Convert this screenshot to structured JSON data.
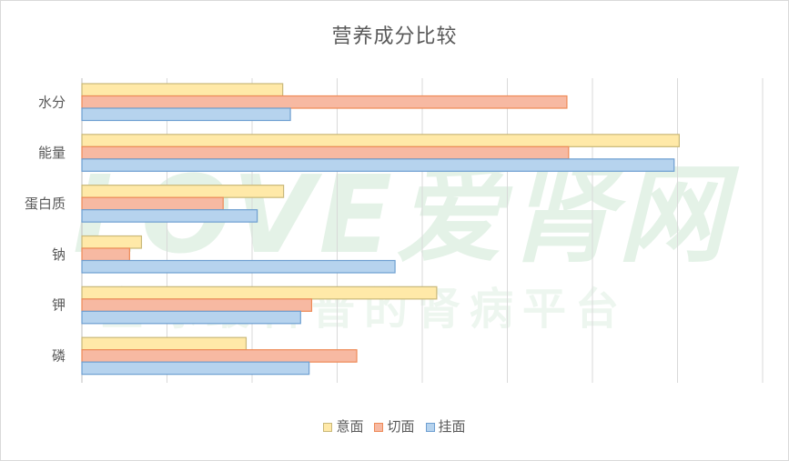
{
  "chart_data": {
    "type": "bar",
    "orientation": "horizontal",
    "title": "营养成分比较",
    "categories": [
      "水分",
      "能量",
      "蛋白质",
      "钠",
      "钾",
      "磷"
    ],
    "series": [
      {
        "name": "意面",
        "values": [
          23.6,
          70.2,
          23.7,
          7.0,
          41.7,
          19.3
        ]
      },
      {
        "name": "切面",
        "values": [
          57.0,
          57.2,
          16.6,
          5.6,
          27.0,
          32.3
        ]
      },
      {
        "name": "挂面",
        "values": [
          24.5,
          69.6,
          20.6,
          36.8,
          25.7,
          26.7
        ]
      }
    ],
    "xlim": [
      0,
      80
    ],
    "grid": true,
    "legend_position": "bottom",
    "colors": {
      "意面": {
        "fill": "#ffe9a8",
        "stroke": "#c9b879"
      },
      "切面": {
        "fill": "#f7b9a2",
        "stroke": "#ee8a57"
      },
      "挂面": {
        "fill": "#b6d3ee",
        "stroke": "#6e9fd1"
      }
    }
  },
  "watermark": {
    "main": "LOVE爱肾网",
    "sub": "全球最科普的肾病平台"
  }
}
